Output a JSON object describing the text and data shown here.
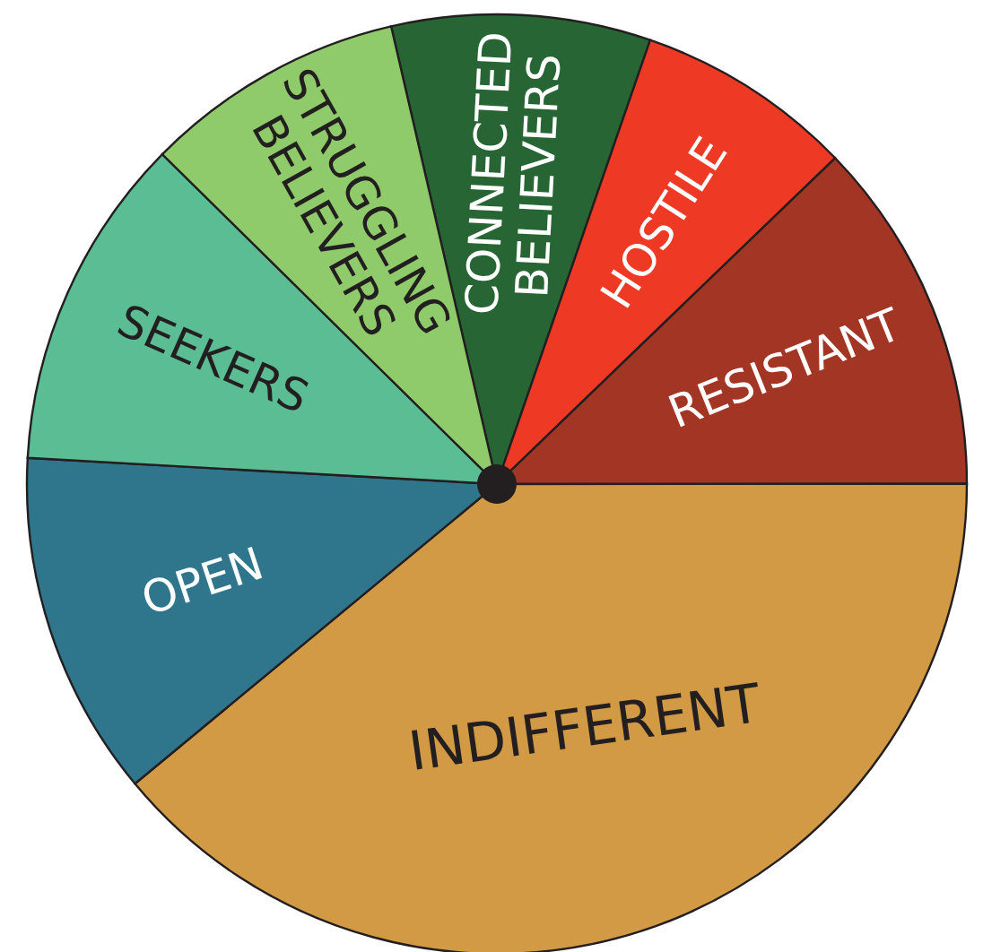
{
  "chart_data": {
    "type": "pie",
    "categories": [
      "CONNECTED BELIEVERS",
      "HOSTILE",
      "RESISTANT",
      "INDIFFERENT",
      "OPEN",
      "SEEKERS",
      "STRUGGLING BELIEVERS"
    ],
    "values": [
      8.9,
      7.5,
      12.2,
      39.0,
      11.9,
      11.5,
      9.0
    ],
    "colors": [
      "#276634",
      "#ee3a24",
      "#a33525",
      "#d29a45",
      "#2f758c",
      "#5abd94",
      "#8fcb6b"
    ]
  }
}
